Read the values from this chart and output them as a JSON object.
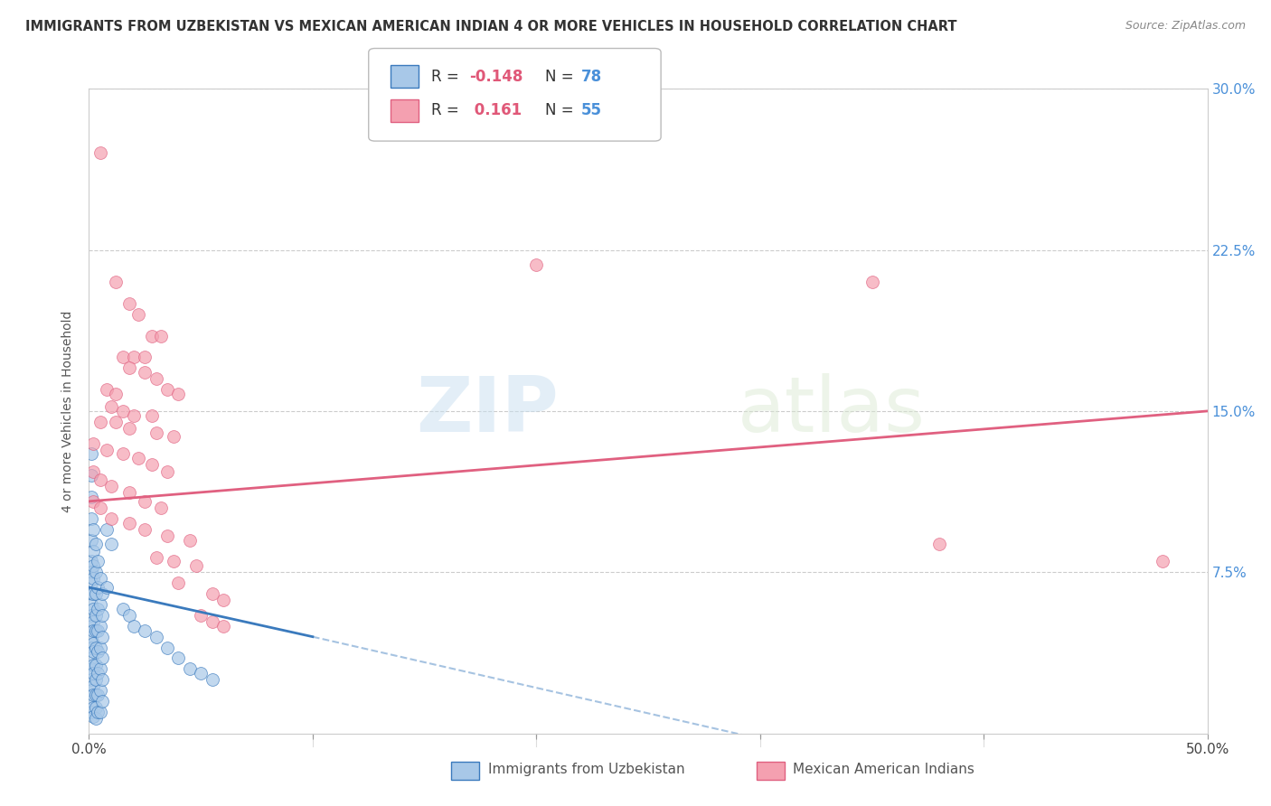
{
  "title": "IMMIGRANTS FROM UZBEKISTAN VS MEXICAN AMERICAN INDIAN 4 OR MORE VEHICLES IN HOUSEHOLD CORRELATION CHART",
  "source": "Source: ZipAtlas.com",
  "ylabel": "4 or more Vehicles in Household",
  "yticks": [
    0.0,
    0.075,
    0.15,
    0.225,
    0.3
  ],
  "ytick_labels": [
    "",
    "7.5%",
    "15.0%",
    "22.5%",
    "30.0%"
  ],
  "xticks": [
    0.0,
    0.1,
    0.2,
    0.3,
    0.4,
    0.5
  ],
  "xlim": [
    0.0,
    0.5
  ],
  "ylim": [
    0.0,
    0.3
  ],
  "color_blue": "#A8C8E8",
  "color_pink": "#F4A0B0",
  "line_blue": "#3A7ABD",
  "line_pink": "#E06080",
  "watermark_zip": "ZIP",
  "watermark_atlas": "atlas",
  "background": "#FFFFFF",
  "blue_scatter": [
    [
      0.001,
      0.13
    ],
    [
      0.001,
      0.12
    ],
    [
      0.001,
      0.11
    ],
    [
      0.001,
      0.1
    ],
    [
      0.001,
      0.09
    ],
    [
      0.001,
      0.08
    ],
    [
      0.001,
      0.075
    ],
    [
      0.001,
      0.07
    ],
    [
      0.001,
      0.065
    ],
    [
      0.001,
      0.06
    ],
    [
      0.001,
      0.055
    ],
    [
      0.001,
      0.05
    ],
    [
      0.001,
      0.045
    ],
    [
      0.001,
      0.04
    ],
    [
      0.001,
      0.035
    ],
    [
      0.001,
      0.03
    ],
    [
      0.001,
      0.025
    ],
    [
      0.001,
      0.02
    ],
    [
      0.001,
      0.015
    ],
    [
      0.001,
      0.01
    ],
    [
      0.002,
      0.095
    ],
    [
      0.002,
      0.085
    ],
    [
      0.002,
      0.078
    ],
    [
      0.002,
      0.072
    ],
    [
      0.002,
      0.065
    ],
    [
      0.002,
      0.058
    ],
    [
      0.002,
      0.052
    ],
    [
      0.002,
      0.048
    ],
    [
      0.002,
      0.042
    ],
    [
      0.002,
      0.038
    ],
    [
      0.002,
      0.032
    ],
    [
      0.002,
      0.028
    ],
    [
      0.002,
      0.022
    ],
    [
      0.002,
      0.018
    ],
    [
      0.002,
      0.012
    ],
    [
      0.002,
      0.008
    ],
    [
      0.003,
      0.088
    ],
    [
      0.003,
      0.075
    ],
    [
      0.003,
      0.065
    ],
    [
      0.003,
      0.055
    ],
    [
      0.003,
      0.048
    ],
    [
      0.003,
      0.04
    ],
    [
      0.003,
      0.032
    ],
    [
      0.003,
      0.025
    ],
    [
      0.003,
      0.018
    ],
    [
      0.003,
      0.012
    ],
    [
      0.003,
      0.007
    ],
    [
      0.004,
      0.08
    ],
    [
      0.004,
      0.068
    ],
    [
      0.004,
      0.058
    ],
    [
      0.004,
      0.048
    ],
    [
      0.004,
      0.038
    ],
    [
      0.004,
      0.028
    ],
    [
      0.004,
      0.018
    ],
    [
      0.004,
      0.01
    ],
    [
      0.005,
      0.072
    ],
    [
      0.005,
      0.06
    ],
    [
      0.005,
      0.05
    ],
    [
      0.005,
      0.04
    ],
    [
      0.005,
      0.03
    ],
    [
      0.005,
      0.02
    ],
    [
      0.005,
      0.01
    ],
    [
      0.006,
      0.065
    ],
    [
      0.006,
      0.055
    ],
    [
      0.006,
      0.045
    ],
    [
      0.006,
      0.035
    ],
    [
      0.006,
      0.025
    ],
    [
      0.006,
      0.015
    ],
    [
      0.008,
      0.095
    ],
    [
      0.008,
      0.068
    ],
    [
      0.01,
      0.088
    ],
    [
      0.015,
      0.058
    ],
    [
      0.018,
      0.055
    ],
    [
      0.02,
      0.05
    ],
    [
      0.025,
      0.048
    ],
    [
      0.03,
      0.045
    ],
    [
      0.035,
      0.04
    ],
    [
      0.04,
      0.035
    ],
    [
      0.045,
      0.03
    ],
    [
      0.05,
      0.028
    ],
    [
      0.055,
      0.025
    ]
  ],
  "pink_scatter": [
    [
      0.005,
      0.27
    ],
    [
      0.012,
      0.21
    ],
    [
      0.018,
      0.2
    ],
    [
      0.022,
      0.195
    ],
    [
      0.028,
      0.185
    ],
    [
      0.032,
      0.185
    ],
    [
      0.015,
      0.175
    ],
    [
      0.02,
      0.175
    ],
    [
      0.025,
      0.175
    ],
    [
      0.018,
      0.17
    ],
    [
      0.025,
      0.168
    ],
    [
      0.03,
      0.165
    ],
    [
      0.008,
      0.16
    ],
    [
      0.012,
      0.158
    ],
    [
      0.035,
      0.16
    ],
    [
      0.04,
      0.158
    ],
    [
      0.01,
      0.152
    ],
    [
      0.015,
      0.15
    ],
    [
      0.02,
      0.148
    ],
    [
      0.028,
      0.148
    ],
    [
      0.005,
      0.145
    ],
    [
      0.012,
      0.145
    ],
    [
      0.018,
      0.142
    ],
    [
      0.03,
      0.14
    ],
    [
      0.038,
      0.138
    ],
    [
      0.002,
      0.135
    ],
    [
      0.008,
      0.132
    ],
    [
      0.015,
      0.13
    ],
    [
      0.022,
      0.128
    ],
    [
      0.028,
      0.125
    ],
    [
      0.035,
      0.122
    ],
    [
      0.002,
      0.122
    ],
    [
      0.005,
      0.118
    ],
    [
      0.01,
      0.115
    ],
    [
      0.018,
      0.112
    ],
    [
      0.025,
      0.108
    ],
    [
      0.032,
      0.105
    ],
    [
      0.002,
      0.108
    ],
    [
      0.005,
      0.105
    ],
    [
      0.01,
      0.1
    ],
    [
      0.018,
      0.098
    ],
    [
      0.025,
      0.095
    ],
    [
      0.035,
      0.092
    ],
    [
      0.045,
      0.09
    ],
    [
      0.03,
      0.082
    ],
    [
      0.038,
      0.08
    ],
    [
      0.048,
      0.078
    ],
    [
      0.04,
      0.07
    ],
    [
      0.055,
      0.065
    ],
    [
      0.06,
      0.062
    ],
    [
      0.05,
      0.055
    ],
    [
      0.055,
      0.052
    ],
    [
      0.06,
      0.05
    ],
    [
      0.2,
      0.218
    ],
    [
      0.35,
      0.21
    ],
    [
      0.38,
      0.088
    ],
    [
      0.48,
      0.08
    ]
  ],
  "blue_line_solid": [
    [
      0.0,
      0.068
    ],
    [
      0.1,
      0.045
    ]
  ],
  "blue_line_dashed": [
    [
      0.1,
      0.045
    ],
    [
      0.5,
      -0.05
    ]
  ],
  "pink_line": [
    [
      0.0,
      0.108
    ],
    [
      0.5,
      0.15
    ]
  ]
}
